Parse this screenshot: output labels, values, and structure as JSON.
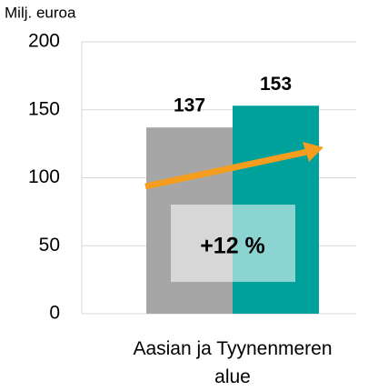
{
  "chart_data": {
    "type": "bar",
    "y_label": "Milj. euroa",
    "categories": [
      "Aasian ja Tyynenmeren alue"
    ],
    "series": [
      {
        "color": "#a6a6a6",
        "values": [
          137
        ]
      },
      {
        "color": "#00a19a",
        "values": [
          153
        ]
      }
    ],
    "annotation": "+12 %",
    "ylim": [
      0,
      200
    ],
    "yticks": [
      0,
      50,
      100,
      150,
      200
    ],
    "grid": true
  }
}
